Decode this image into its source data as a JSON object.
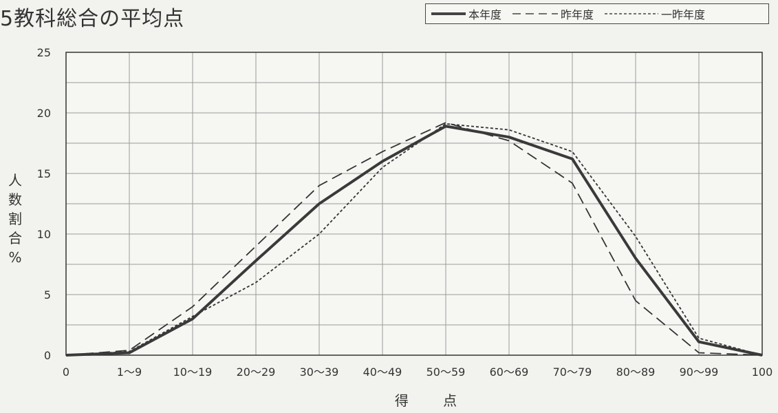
{
  "chart_data": {
    "type": "line",
    "title": "5教科総合の平均点",
    "xlabel": "得 点",
    "ylabel": [
      "人",
      "数",
      "割",
      "合",
      "%"
    ],
    "categories": [
      "0",
      "1～9",
      "10～19",
      "20～29",
      "30～39",
      "40～49",
      "50～59",
      "60～69",
      "70～79",
      "80～89",
      "90～99",
      "100"
    ],
    "yticks": [
      "0",
      "5",
      "10",
      "15",
      "20",
      "25"
    ],
    "ylim": [
      0,
      25
    ],
    "grid": true,
    "legend_position": "top-right",
    "series": [
      {
        "name": "本年度",
        "style": "solid",
        "values": [
          0,
          0.2,
          3.0,
          7.8,
          12.5,
          16.0,
          18.9,
          18.0,
          16.2,
          8.0,
          1.1,
          0
        ]
      },
      {
        "name": "昨年度",
        "style": "dashed",
        "values": [
          0,
          0.4,
          4.0,
          9.0,
          14.0,
          16.8,
          19.2,
          17.7,
          14.2,
          4.5,
          0.2,
          0
        ]
      },
      {
        "name": "一昨年度",
        "style": "dotted",
        "values": [
          0,
          0.3,
          3.2,
          6.0,
          10.0,
          15.5,
          19.1,
          18.6,
          16.8,
          9.8,
          1.4,
          0
        ]
      }
    ]
  }
}
